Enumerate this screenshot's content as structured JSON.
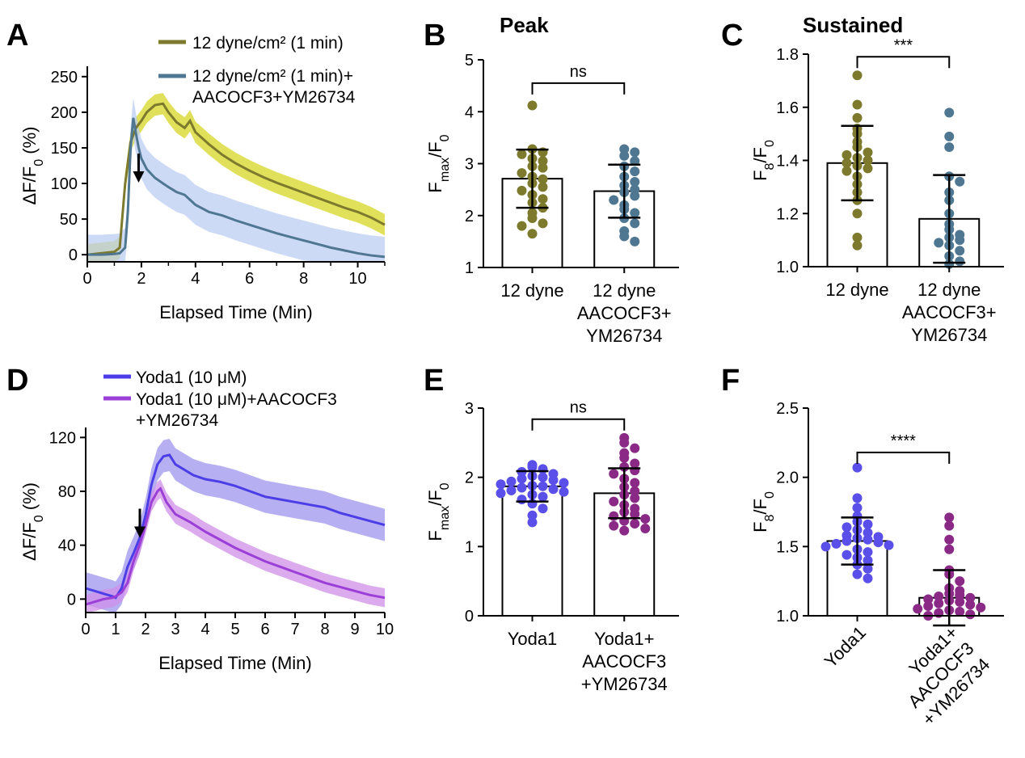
{
  "figure": {
    "colors": {
      "shear_control": "#7d7a2d",
      "shear_control_band": "#d6d624",
      "shear_inhib": "#4f7791",
      "shear_inhib_band": "#bccdf2",
      "yoda": "#4b3ee6",
      "yoda_band": "#9e96ee",
      "yoda_inhib": "#9b3fd6",
      "yoda_inhib_band": "#cf8fe8",
      "yoda_dot": "#5a4fe8",
      "yoda_inhib_dot": "#8b2a86"
    },
    "arrow_icon": "down-arrow-icon"
  },
  "chart_data": [
    {
      "id": "A",
      "panel": "A",
      "type": "line",
      "title": "",
      "xlabel": "Elapsed Time (Min)",
      "ylabel": "ΔF/F₀ (%)",
      "xlim": [
        0,
        11
      ],
      "ylim": [
        -10,
        260
      ],
      "xticks": [
        "0",
        "2",
        "4",
        "6",
        "8",
        "10"
      ],
      "yticks": [
        "0",
        "50",
        "100",
        "150",
        "200",
        "250"
      ],
      "arrow_at_min": 1,
      "series": [
        {
          "name": "12 dyne/cm² (1 min)",
          "x": [
            0,
            0.5,
            1.0,
            1.2,
            1.4,
            1.6,
            1.8,
            2.0,
            2.2,
            2.5,
            2.8,
            3.0,
            3.3,
            3.6,
            3.8,
            4.0,
            4.5,
            5.0,
            5.5,
            6.0,
            6.5,
            7.0,
            7.5,
            8.0,
            8.5,
            9.0,
            9.5,
            10.0,
            10.5,
            11.0
          ],
          "values": [
            0,
            2,
            4,
            10,
            100,
            158,
            178,
            188,
            200,
            210,
            212,
            200,
            186,
            178,
            188,
            172,
            155,
            140,
            128,
            118,
            109,
            101,
            94,
            87,
            80,
            73,
            66,
            60,
            52,
            42
          ],
          "band": 15
        },
        {
          "name": "12 dyne/cm² (1 min)+ AACOCF3+YM26734",
          "x": [
            0,
            0.5,
            1.0,
            1.2,
            1.4,
            1.5,
            1.6,
            1.7,
            1.8,
            1.9,
            2.0,
            2.2,
            2.5,
            2.8,
            3.0,
            3.3,
            3.6,
            4.0,
            4.5,
            5.0,
            5.5,
            6.0,
            6.5,
            7.0,
            7.5,
            8.0,
            8.5,
            9.0,
            9.5,
            10.0,
            10.5,
            11.0
          ],
          "values": [
            0,
            0,
            1,
            2,
            10,
            60,
            150,
            192,
            170,
            150,
            135,
            120,
            108,
            100,
            95,
            88,
            84,
            70,
            60,
            55,
            48,
            42,
            36,
            30,
            25,
            20,
            15,
            10,
            6,
            2,
            -1,
            -3
          ],
          "band": 28
        }
      ]
    },
    {
      "id": "B",
      "panel": "B",
      "type": "bar",
      "title": "Peak",
      "ylabel": "Fmax/F0",
      "ylim": [
        1,
        5
      ],
      "yticks": [
        "1",
        "2",
        "3",
        "4",
        "5"
      ],
      "categories": [
        "12 dyne",
        "12 dyne AACOCF3+ YM26734"
      ],
      "category_lines": [
        [
          "12 dyne"
        ],
        [
          "12 dyne",
          "AACOCF3+",
          "YM26734"
        ]
      ],
      "bars": [
        {
          "mean": 2.71,
          "sd": 0.56
        },
        {
          "mean": 2.47,
          "sd": 0.51
        }
      ],
      "points": [
        [
          4.12,
          3.28,
          3.18,
          3.22,
          3.1,
          3.05,
          2.95,
          2.92,
          2.82,
          2.75,
          2.7,
          2.62,
          2.55,
          2.48,
          2.4,
          2.32,
          2.25,
          2.15,
          2.05,
          1.95,
          1.85,
          1.8,
          1.65
        ],
        [
          3.28,
          3.22,
          3.15,
          3.05,
          2.95,
          2.85,
          2.75,
          2.65,
          2.58,
          2.5,
          2.45,
          2.38,
          2.3,
          2.2,
          2.12,
          2.05,
          1.95,
          1.85,
          1.7,
          1.6,
          1.5
        ]
      ],
      "point_colors": [
        "#7d7a2d",
        "#4f7791"
      ],
      "significance": "ns"
    },
    {
      "id": "C",
      "panel": "C",
      "type": "bar",
      "title": "Sustained",
      "ylabel": "F8/F0",
      "ylim": [
        1.0,
        1.8
      ],
      "yticks": [
        "1.0",
        "1.2",
        "1.4",
        "1.6",
        "1.8"
      ],
      "categories": [
        "12 dyne",
        "12 dyne AACOCF3+ YM26734"
      ],
      "category_lines": [
        [
          "12 dyne"
        ],
        [
          "12 dyne",
          "AACOCF3+",
          "YM26734"
        ]
      ],
      "bars": [
        {
          "mean": 1.39,
          "sd": 0.14
        },
        {
          "mean": 1.18,
          "sd": 0.165
        }
      ],
      "points": [
        [
          1.72,
          1.61,
          1.56,
          1.52,
          1.5,
          1.47,
          1.45,
          1.43,
          1.42,
          1.41,
          1.4,
          1.39,
          1.38,
          1.37,
          1.36,
          1.34,
          1.31,
          1.28,
          1.25,
          1.2,
          1.11,
          1.08
        ],
        [
          1.58,
          1.49,
          1.45,
          1.34,
          1.32,
          1.28,
          1.25,
          1.2,
          1.16,
          1.14,
          1.12,
          1.11,
          1.1,
          1.09,
          1.08,
          1.06,
          1.04,
          1.02,
          1.01
        ]
      ],
      "point_colors": [
        "#7d7a2d",
        "#4f7791"
      ],
      "significance": "***"
    },
    {
      "id": "D",
      "panel": "D",
      "type": "line",
      "title": "",
      "xlabel": "Elapsed Time (Min)",
      "ylabel": "ΔF/F₀ (%)",
      "xlim": [
        0,
        10
      ],
      "ylim": [
        -10,
        125
      ],
      "xticks": [
        "0",
        "1",
        "2",
        "3",
        "4",
        "5",
        "6",
        "7",
        "8",
        "9",
        "10"
      ],
      "yticks": [
        "0",
        "40",
        "80",
        "120"
      ],
      "arrow_at_min": 1,
      "series": [
        {
          "name": "Yoda1 (10 μM)",
          "x": [
            0,
            0.3,
            0.6,
            0.9,
            1.0,
            1.2,
            1.4,
            1.6,
            1.8,
            2.0,
            2.2,
            2.4,
            2.6,
            2.8,
            3.0,
            3.3,
            3.6,
            4.0,
            4.5,
            5.0,
            5.5,
            6.0,
            6.5,
            7.0,
            7.5,
            8.0,
            8.5,
            9.0,
            9.5,
            10.0
          ],
          "values": [
            8,
            6,
            4,
            2,
            1,
            8,
            24,
            34,
            45,
            62,
            85,
            100,
            106,
            107,
            100,
            96,
            92,
            89,
            87,
            84,
            80,
            76,
            74,
            72,
            70,
            68,
            64,
            61,
            58,
            55
          ],
          "band": 12
        },
        {
          "name": "Yoda1 (10 μM)+AACOCF3 +YM26734",
          "x": [
            0,
            0.3,
            0.6,
            0.9,
            1.0,
            1.2,
            1.4,
            1.6,
            1.8,
            2.0,
            2.2,
            2.4,
            2.5,
            2.7,
            3.0,
            3.5,
            4.0,
            4.5,
            5.0,
            5.5,
            6.0,
            6.5,
            7.0,
            7.5,
            8.0,
            8.5,
            9.0,
            9.5,
            10.0
          ],
          "values": [
            -4,
            -2,
            0,
            1,
            2,
            5,
            12,
            28,
            40,
            55,
            72,
            80,
            82,
            72,
            63,
            57,
            50,
            44,
            38,
            33,
            28,
            24,
            20,
            16,
            12,
            9,
            6,
            3,
            1
          ],
          "band": 7
        }
      ]
    },
    {
      "id": "E",
      "panel": "E",
      "type": "bar",
      "title": "",
      "ylabel": "Fmax/F0",
      "ylim": [
        0,
        3
      ],
      "yticks": [
        "0",
        "1",
        "2",
        "3"
      ],
      "categories": [
        "Yoda1",
        "Yoda1+ AACOCF3 +YM26734"
      ],
      "category_lines": [
        [
          "Yoda1"
        ],
        [
          "Yoda1+",
          "AACOCF3",
          "+YM26734"
        ]
      ],
      "bars": [
        {
          "mean": 1.87,
          "sd": 0.22
        },
        {
          "mean": 1.77,
          "sd": 0.36
        }
      ],
      "points": [
        [
          2.18,
          2.15,
          2.12,
          2.08,
          2.05,
          2.02,
          2.0,
          1.98,
          1.96,
          1.94,
          1.92,
          1.9,
          1.88,
          1.87,
          1.85,
          1.83,
          1.81,
          1.79,
          1.77,
          1.75,
          1.72,
          1.68,
          1.62,
          1.55,
          1.45,
          1.35
        ],
        [
          2.57,
          2.5,
          2.42,
          2.35,
          2.28,
          2.2,
          2.15,
          2.1,
          2.05,
          1.98,
          1.92,
          1.86,
          1.8,
          1.75,
          1.7,
          1.65,
          1.6,
          1.55,
          1.5,
          1.47,
          1.44,
          1.4,
          1.37,
          1.33,
          1.3,
          1.26,
          1.23
        ]
      ],
      "point_colors": [
        "#5a4fe8",
        "#8b2a86"
      ],
      "significance": "ns"
    },
    {
      "id": "F",
      "panel": "F",
      "type": "bar",
      "title": "",
      "ylabel": "F8/F0",
      "ylim": [
        1.0,
        2.5
      ],
      "yticks": [
        "1.0",
        "1.5",
        "2.0",
        "2.5"
      ],
      "categories": [
        "Yoda1",
        "Yoda1+ AACOCF3 +YM26734"
      ],
      "category_lines": [
        [
          "Yoda1"
        ],
        [
          "Yoda1+",
          "AACOCF3",
          "+YM26734"
        ]
      ],
      "bars": [
        {
          "mean": 1.54,
          "sd": 0.17
        },
        {
          "mean": 1.13,
          "sd": 0.2
        }
      ],
      "points": [
        [
          2.07,
          1.85,
          1.78,
          1.72,
          1.68,
          1.66,
          1.64,
          1.62,
          1.6,
          1.58,
          1.57,
          1.56,
          1.55,
          1.54,
          1.53,
          1.52,
          1.51,
          1.5,
          1.48,
          1.46,
          1.44,
          1.42,
          1.4,
          1.37,
          1.34,
          1.3,
          1.27
        ],
        [
          1.71,
          1.65,
          1.55,
          1.48,
          1.33,
          1.3,
          1.25,
          1.2,
          1.18,
          1.16,
          1.15,
          1.14,
          1.13,
          1.12,
          1.11,
          1.1,
          1.09,
          1.08,
          1.07,
          1.06,
          1.05,
          1.04,
          1.03,
          1.02,
          1.01,
          1.0
        ]
      ],
      "point_colors": [
        "#5a4fe8",
        "#8b2a86"
      ],
      "significance": "****",
      "rotate_categories": true
    }
  ]
}
